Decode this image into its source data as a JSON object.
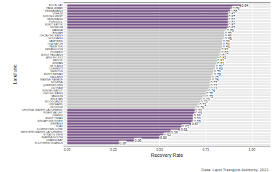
{
  "chart_data": {
    "type": "bar",
    "orientation": "horizontal",
    "xlabel": "Recovery Rate",
    "ylabel": "Land use",
    "caption": "Data: Land Transport Authority, 2021",
    "categories": [
      "BOON LAY",
      "PAYA LEBAR",
      "SEMBAWANG",
      "YISHUN",
      "JURONG WEST",
      "SENGKANG",
      "PUNGGOL",
      "BUKIT BATOK",
      "MUSEUM",
      "MANDAI",
      "TENGAH",
      "CHOA CHU KANG",
      "HOUGANG",
      "TAMPINES",
      "TOA PAYOH",
      "PASIR RIS",
      "SERANGOON",
      "PIONEER",
      "BUKIT PANJANG",
      "ANG MO KIO",
      "BEDOK",
      "BISHAN",
      "GEYLANG",
      "CLEMENTI",
      "NEWTON",
      "BUKIT MERAH",
      "KALLANG",
      "MARINE PARADE",
      "NOVENA",
      "QUEENSTOWN",
      "OUTRAM",
      "SUNGEI KADUT",
      "LIM CHU KANG",
      "TANGLIN",
      "SELETAR",
      "WOODLANDS",
      "ORCHARD",
      "ROCHOR",
      "CENTRAL WATER CATCHMENT",
      "RIVER VALLEY",
      "CHANGI",
      "BUKIT TIMAH",
      "SINGAPORE RIVER",
      "SIMPANG",
      "TUAS",
      "DOWNTOWN CORE",
      "WESTERN WATER CATCHMENT",
      "STRAITS VIEW",
      "MARINA SOUTH",
      "CHANGI BAY",
      "SOUTHERN ISLANDS"
    ],
    "values": [
      0.94,
      0.89,
      0.88,
      0.87,
      0.87,
      0.87,
      0.87,
      0.87,
      0.87,
      0.86,
      0.85,
      0.85,
      0.85,
      0.84,
      0.84,
      0.84,
      0.83,
      0.83,
      0.82,
      0.82,
      0.81,
      0.81,
      0.8,
      0.8,
      0.79,
      0.79,
      0.78,
      0.78,
      0.77,
      0.77,
      0.77,
      0.76,
      0.75,
      0.75,
      0.73,
      0.72,
      0.71,
      0.7,
      0.69,
      0.69,
      0.68,
      0.68,
      0.68,
      0.67,
      0.62,
      0.61,
      0.56,
      0.52,
      0.5,
      0.36,
      0.28
    ],
    "value_labels": [
      "0.94",
      "0.89",
      "0.88",
      "0.87",
      "0.87",
      "0.87",
      "0.87",
      "0.87",
      "0.87",
      "0.86",
      "0.85",
      "0.85",
      "0.85",
      "0.84",
      "0.84",
      "0.84",
      "0.83",
      "0.83",
      "0.82",
      "0.82",
      "0.81",
      "0.81",
      "0.80",
      "0.80",
      "0.79",
      "0.79",
      "0.78",
      "0.78",
      "0.77",
      "0.77",
      "0.77",
      "0.76",
      "0.75",
      "0.75",
      "0.73",
      "0.72",
      "0.71",
      "0.70",
      "0.69",
      "0.69",
      "0.68",
      "0.68",
      "0.68",
      "0.67",
      "0.62",
      "0.61",
      "0.56",
      "0.52",
      "0.50",
      "0.36",
      "0.28"
    ],
    "colors": [
      "#7e5a8c",
      "#7e5a8c",
      "#7e5a8c",
      "#7e5a8c",
      "#7e5a8c",
      "#7e5a8c",
      "#7e5a8c",
      "#7e5a8c",
      "#7e5a8c",
      "#c4c4c4",
      "#c4c4c4",
      "#c4c4c4",
      "#c4c4c4",
      "#c4c4c4",
      "#c4c4c4",
      "#c4c4c4",
      "#c4c4c4",
      "#c4c4c4",
      "#c4c4c4",
      "#c4c4c4",
      "#c4c4c4",
      "#c4c4c4",
      "#c4c4c4",
      "#c4c4c4",
      "#c4c4c4",
      "#c4c4c4",
      "#c4c4c4",
      "#c4c4c4",
      "#c4c4c4",
      "#c4c4c4",
      "#c4c4c4",
      "#c4c4c4",
      "#c4c4c4",
      "#c4c4c4",
      "#c4c4c4",
      "#c4c4c4",
      "#c4c4c4",
      "#c4c4c4",
      "#7e5a8c",
      "#7e5a8c",
      "#7e5a8c",
      "#7e5a8c",
      "#7e5a8c",
      "#7e5a8c",
      "#7e5a8c",
      "#7e5a8c",
      "#7e5a8c",
      "#7e5a8c",
      "#7e5a8c",
      "#7e5a8c",
      "#7e5a8c"
    ],
    "data_labels": true,
    "xlim": [
      -0.02,
      1.1
    ],
    "xticks": [
      {
        "value": 0,
        "label": "0.00"
      },
      {
        "value": 0.25,
        "label": "0.25"
      },
      {
        "value": 0.5,
        "label": "0.50"
      },
      {
        "value": 0.75,
        "label": "0.75"
      },
      {
        "value": 1,
        "label": "1.00"
      }
    ],
    "grid": true
  }
}
